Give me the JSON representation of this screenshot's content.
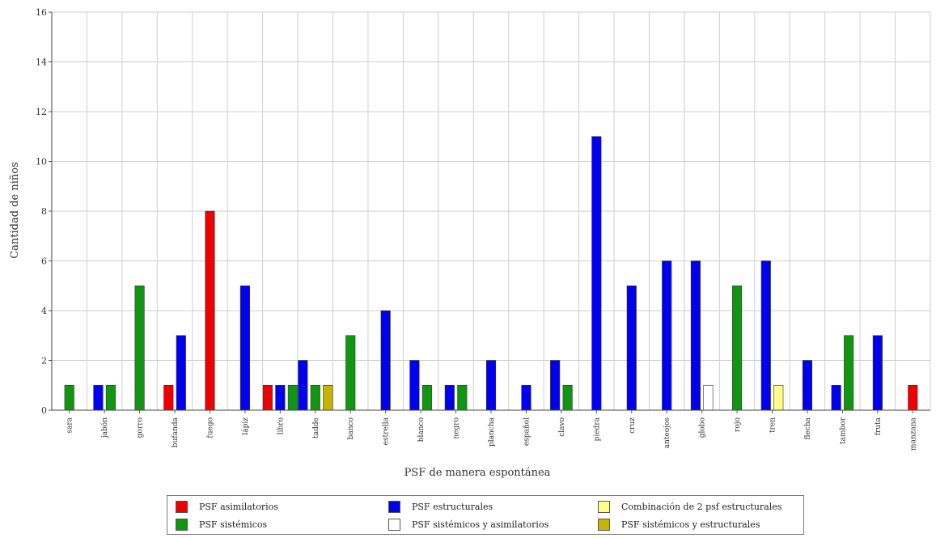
{
  "chart_data": {
    "type": "bar",
    "xlabel": "PSF de manera espontánea",
    "ylabel": "Cantidad de niños",
    "ylim": [
      0,
      16
    ],
    "yticks": [
      0,
      2,
      4,
      6,
      8,
      10,
      12,
      14,
      16
    ],
    "grid": true,
    "legend_position": "bottom",
    "categories": [
      "sara",
      "jabón",
      "gorro",
      "bufanda",
      "fuego",
      "lápiz",
      "libro",
      "tadde",
      "banco",
      "estrella",
      "blanco",
      "negro",
      "plancha",
      "español",
      "clavo",
      "piedra",
      "cruz",
      "anteojos",
      "globo",
      "rojo",
      "tren",
      "flecha",
      "tambor",
      "fruta",
      "manzana"
    ],
    "series": [
      {
        "name": "PSF asimilatorios",
        "color": "#ee0000",
        "values": [
          0,
          0,
          0,
          1,
          8,
          0,
          1,
          0,
          0,
          0,
          0,
          0,
          0,
          0,
          0,
          0,
          0,
          0,
          0,
          0,
          0,
          0,
          0,
          0,
          1
        ]
      },
      {
        "name": "PSF estructurales",
        "color": "#0000ee",
        "values": [
          0,
          1,
          0,
          3,
          0,
          5,
          1,
          2,
          0,
          4,
          2,
          1,
          2,
          1,
          2,
          11,
          5,
          6,
          6,
          0,
          6,
          2,
          1,
          3,
          0
        ]
      },
      {
        "name": "PSF sistémicos",
        "color": "#119611",
        "values": [
          1,
          1,
          5,
          0,
          0,
          0,
          1,
          1,
          3,
          0,
          1,
          1,
          0,
          0,
          1,
          0,
          0,
          0,
          0,
          5,
          0,
          0,
          3,
          0,
          0
        ]
      },
      {
        "name": "PSF sistémicos y asimilatorios",
        "color": "#ffffff",
        "values": [
          0,
          0,
          0,
          0,
          0,
          0,
          0,
          0,
          0,
          0,
          0,
          0,
          0,
          0,
          0,
          0,
          0,
          0,
          1,
          0,
          0,
          0,
          0,
          0,
          0
        ]
      },
      {
        "name": "Combinación de 2 psf estructurales",
        "color": "#ffff88",
        "values": [
          0,
          0,
          0,
          0,
          0,
          0,
          0,
          0,
          0,
          0,
          0,
          0,
          0,
          0,
          0,
          0,
          0,
          0,
          0,
          0,
          1,
          0,
          0,
          0,
          0
        ]
      },
      {
        "name": "PSF sistémicos y estructurales",
        "color": "#c8b400",
        "values": [
          0,
          0,
          0,
          0,
          0,
          0,
          0,
          1,
          0,
          0,
          0,
          0,
          0,
          0,
          0,
          0,
          0,
          0,
          0,
          0,
          0,
          0,
          0,
          0,
          0
        ]
      }
    ]
  },
  "legend": [
    {
      "label": "PSF asimilatorios",
      "color": "#ee0000"
    },
    {
      "label": "PSF estructurales",
      "color": "#0000ee"
    },
    {
      "label": "Combinación de 2 psf estructurales",
      "color": "#ffff88"
    },
    {
      "label": "PSF sistémicos",
      "color": "#119611"
    },
    {
      "label": "PSF sistémicos y asimilatorios",
      "color": "#ffffff"
    },
    {
      "label": "PSF sistémicos y estructurales",
      "color": "#c8b400"
    }
  ]
}
